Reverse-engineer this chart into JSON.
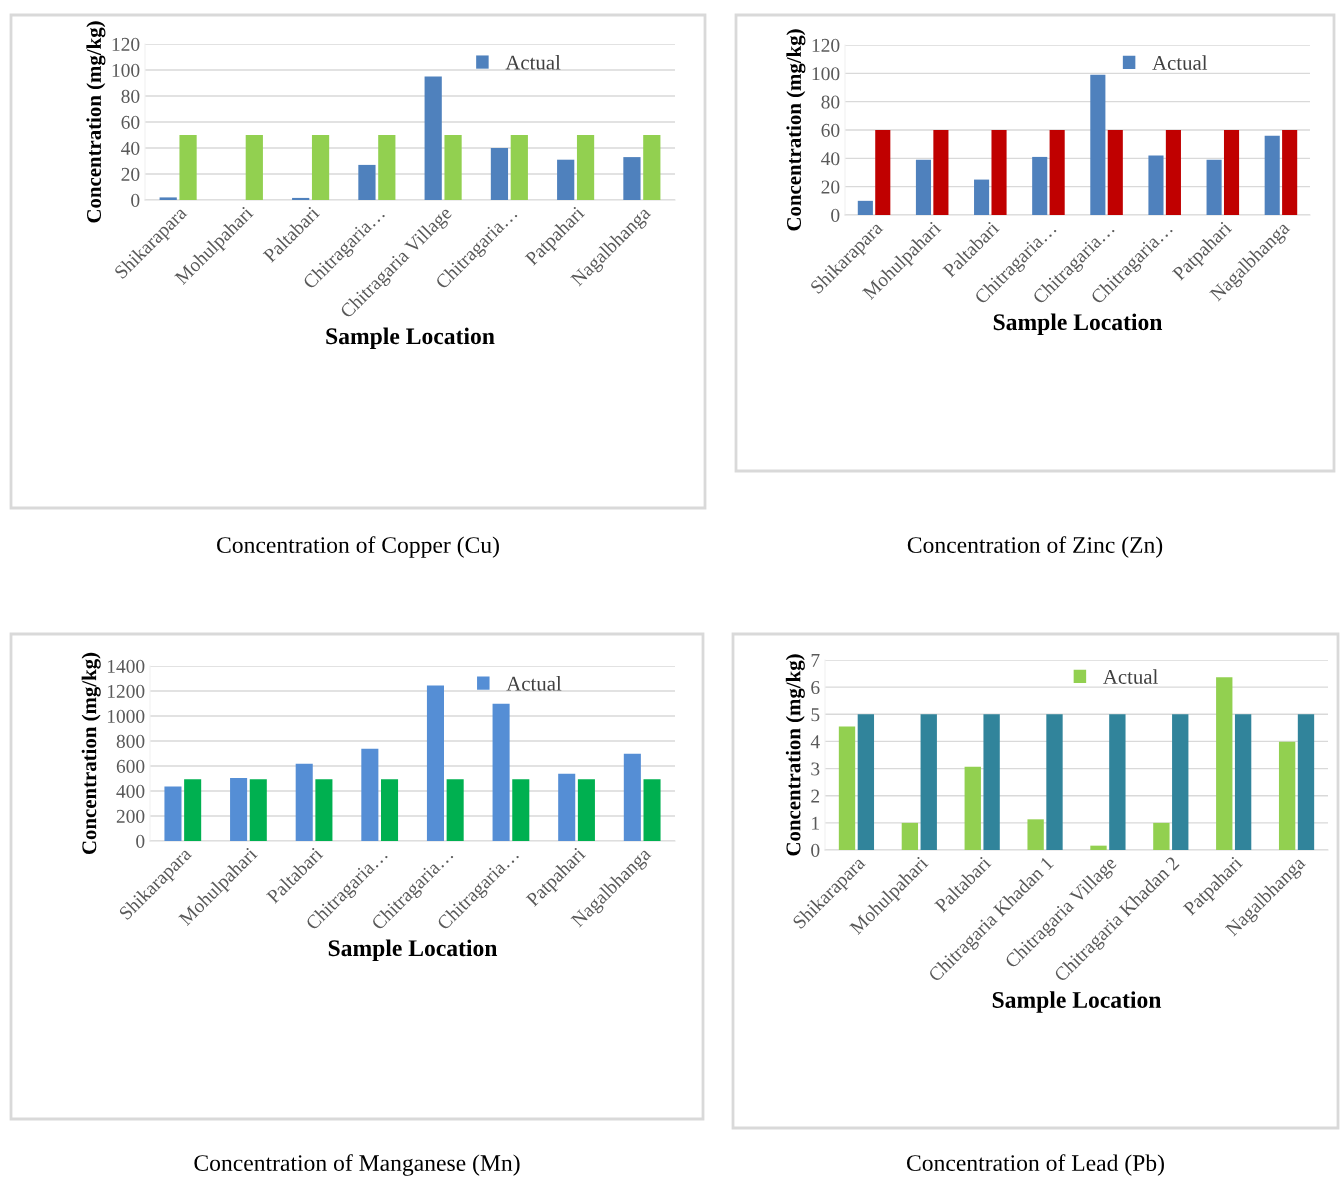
{
  "chart_data": [
    {
      "type": "bar",
      "title": "Concentration of Copper (Cu)",
      "xlabel": "Sample Location",
      "ylabel": "Concentration (mg/kg)",
      "categories": [
        "Shikarapara",
        "Mohulpahari",
        "Paltabari",
        "Chitragaria…",
        "Chitragaria Village",
        "Chitragaria…",
        "Patpahari",
        "Nagalbhanga"
      ],
      "series": [
        {
          "name": "Actual",
          "color": "#4f81bd",
          "values": [
            2,
            0,
            1.6,
            27,
            95,
            40,
            31,
            33
          ]
        },
        {
          "color": "#92d050",
          "values": [
            50,
            50,
            50,
            50,
            50,
            50,
            50,
            50
          ]
        }
      ],
      "ylim": [
        0,
        120
      ],
      "yticks": [
        0,
        20,
        40,
        60,
        80,
        100,
        120
      ],
      "grid": "y",
      "legend": "top right"
    },
    {
      "type": "bar",
      "title": "Concentration of Zinc (Zn)",
      "xlabel": "Sample Location",
      "ylabel": "Concentration (mg/kg)",
      "categories": [
        "Shikarapara",
        "Mohulpahari",
        "Paltabari",
        "Chitragaria…",
        "Chitragaria…",
        "Chitragaria…",
        "Patpahari",
        "Nagalbhanga"
      ],
      "series": [
        {
          "name": "Actual",
          "color": "#4f81bd",
          "values": [
            10,
            39,
            25,
            41,
            99,
            42,
            39,
            56
          ]
        },
        {
          "color": "#c00000",
          "values": [
            60,
            60,
            60,
            60,
            60,
            60,
            60,
            60
          ]
        }
      ],
      "ylim": [
        0,
        120
      ],
      "yticks": [
        0,
        20,
        40,
        60,
        80,
        100,
        120
      ],
      "grid": "y",
      "legend": "top right"
    },
    {
      "type": "bar",
      "title": "Concentration of Manganese (Mn)",
      "xlabel": "Sample Location",
      "ylabel": "Concentration (mg/kg)",
      "categories": [
        "Shikarapara",
        "Mohulpahari",
        "Paltabari",
        "Chitragaria…",
        "Chitragaria…",
        "Chitragaria…",
        "Patpahari",
        "Nagalbhanga"
      ],
      "series": [
        {
          "name": "Actual",
          "color": "#558ed5",
          "values": [
            436,
            505,
            618,
            738,
            1243,
            1098,
            538,
            697
          ]
        },
        {
          "color": "#00b050",
          "values": [
            494,
            494,
            494,
            494,
            494,
            494,
            494,
            494
          ]
        }
      ],
      "ylim": [
        0,
        1400
      ],
      "yticks": [
        0,
        200,
        400,
        600,
        800,
        1000,
        1200,
        1400
      ],
      "grid": "y",
      "legend": "top right"
    },
    {
      "type": "bar",
      "title": "Concentration of Lead (Pb)",
      "xlabel": "Sample Location",
      "ylabel": "Concentration (mg/kg)",
      "categories": [
        "Shikarapara",
        "Mohulpahari",
        "Paltabari",
        "Chitragaria Khadan 1",
        "Chitragaria Village",
        "Chitragaria Khadan 2",
        "Patpahari",
        "Nagalbhanga"
      ],
      "series": [
        {
          "name": "Actual",
          "color": "#92d050",
          "values": [
            4.55,
            1.0,
            3.07,
            1.13,
            0.16,
            1.0,
            6.36,
            3.99
          ]
        },
        {
          "color": "#31849b",
          "values": [
            5,
            5,
            5,
            5,
            5,
            5,
            5,
            5
          ]
        }
      ],
      "ylim": [
        0,
        7
      ],
      "yticks": [
        0,
        1,
        2,
        3,
        4,
        5,
        6,
        7
      ],
      "grid": "y",
      "legend": "top right"
    }
  ]
}
